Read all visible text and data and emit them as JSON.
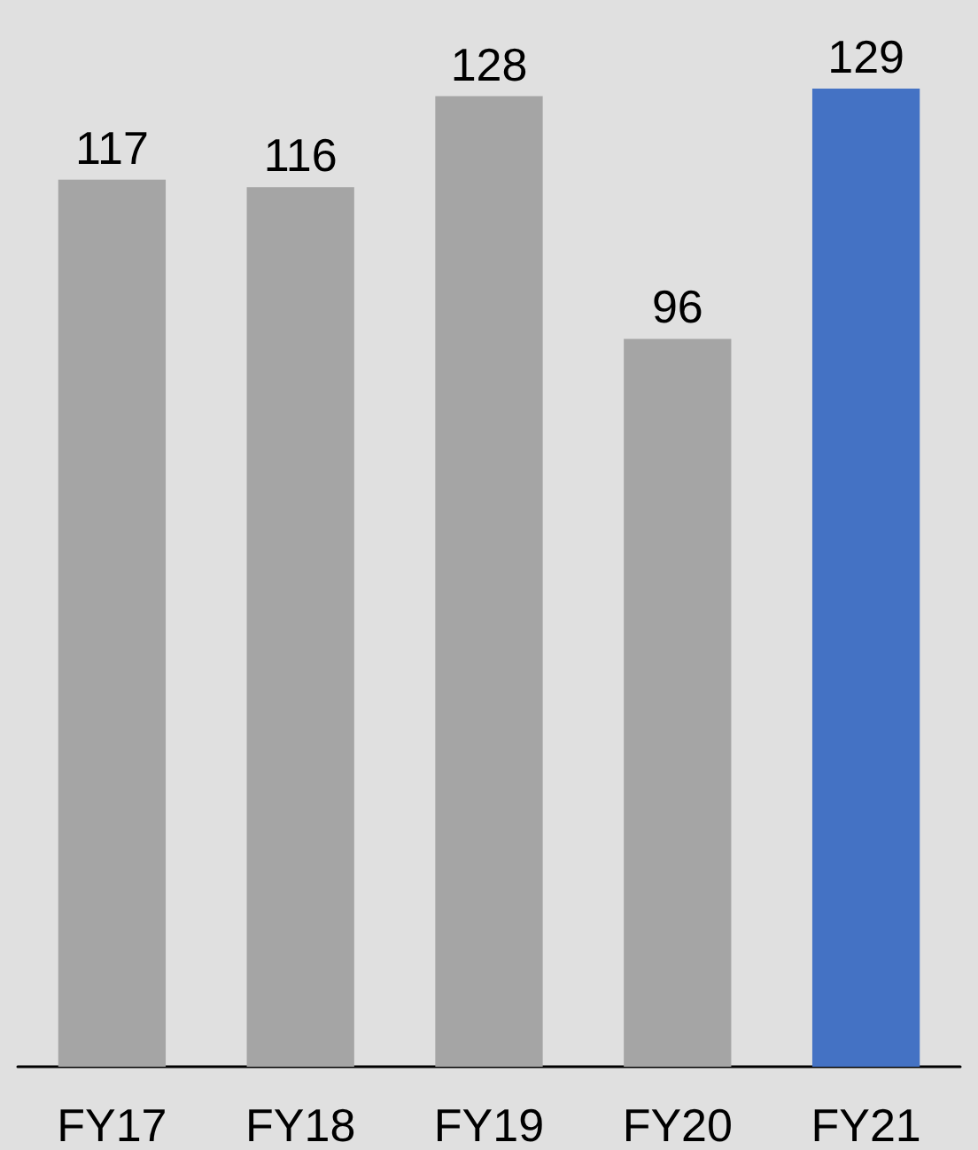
{
  "chart_data": {
    "type": "bar",
    "categories": [
      "FY17",
      "FY18",
      "FY19",
      "FY20",
      "FY21"
    ],
    "values": [
      117,
      116,
      128,
      96,
      129
    ],
    "colors": [
      "#a5a5a5",
      "#a5a5a5",
      "#a5a5a5",
      "#a5a5a5",
      "#4472c4"
    ],
    "data_labels": true
  }
}
